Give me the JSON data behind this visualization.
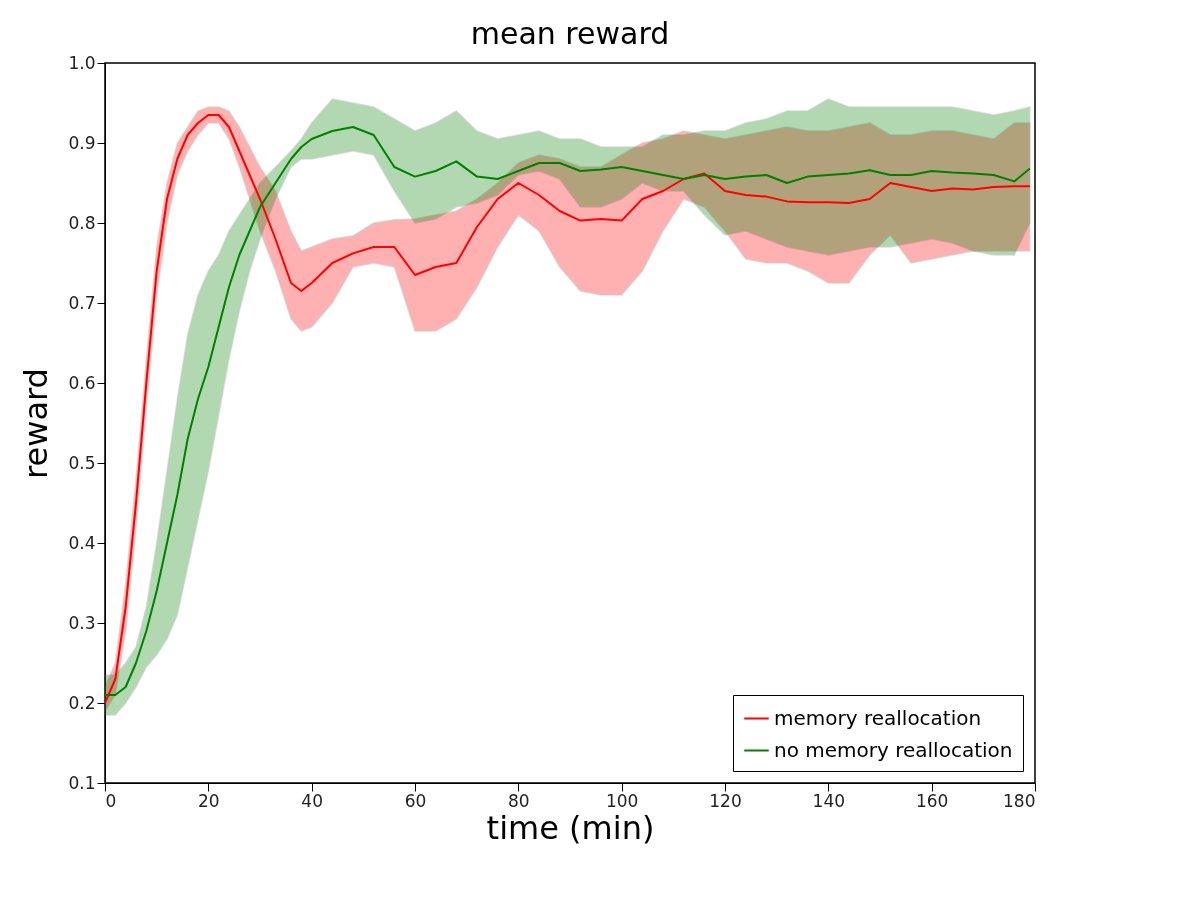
{
  "chart_data": {
    "type": "line",
    "title": "mean reward",
    "xlabel": "time (min)",
    "ylabel": "reward",
    "x": [
      0,
      2,
      4,
      6,
      8,
      10,
      12,
      14,
      16,
      18,
      20,
      22,
      24,
      26,
      28,
      30,
      33,
      36,
      38,
      40,
      44,
      48,
      52,
      56,
      60,
      64,
      68,
      72,
      76,
      80,
      84,
      88,
      92,
      96,
      100,
      104,
      108,
      112,
      116,
      120,
      124,
      128,
      132,
      136,
      140,
      144,
      148,
      152,
      156,
      160,
      164,
      168,
      172,
      176,
      179
    ],
    "series": [
      {
        "name": "memory reallocation",
        "color": "#ff0000",
        "values": [
          0.2,
          0.23,
          0.32,
          0.45,
          0.6,
          0.74,
          0.83,
          0.88,
          0.91,
          0.925,
          0.935,
          0.935,
          0.92,
          0.89,
          0.86,
          0.83,
          0.78,
          0.725,
          0.715,
          0.725,
          0.75,
          0.762,
          0.77,
          0.77,
          0.735,
          0.745,
          0.75,
          0.795,
          0.83,
          0.85,
          0.835,
          0.815,
          0.803,
          0.805,
          0.803,
          0.83,
          0.84,
          0.855,
          0.862,
          0.84,
          0.835,
          0.833,
          0.827,
          0.826,
          0.826,
          0.825,
          0.83,
          0.85,
          0.845,
          0.84,
          0.843,
          0.842,
          0.845,
          0.846,
          0.846
        ],
        "lower": [
          0.19,
          0.21,
          0.29,
          0.42,
          0.57,
          0.71,
          0.8,
          0.86,
          0.89,
          0.91,
          0.925,
          0.925,
          0.905,
          0.87,
          0.83,
          0.79,
          0.74,
          0.68,
          0.665,
          0.67,
          0.7,
          0.745,
          0.75,
          0.745,
          0.665,
          0.665,
          0.68,
          0.72,
          0.77,
          0.81,
          0.79,
          0.745,
          0.715,
          0.71,
          0.71,
          0.74,
          0.79,
          0.83,
          0.82,
          0.79,
          0.755,
          0.75,
          0.75,
          0.74,
          0.725,
          0.725,
          0.76,
          0.785,
          0.75,
          0.755,
          0.76,
          0.765,
          0.765,
          0.765,
          0.765
        ],
        "upper": [
          0.22,
          0.25,
          0.35,
          0.48,
          0.63,
          0.77,
          0.85,
          0.9,
          0.92,
          0.94,
          0.945,
          0.945,
          0.94,
          0.92,
          0.895,
          0.87,
          0.84,
          0.79,
          0.765,
          0.77,
          0.78,
          0.784,
          0.8,
          0.804,
          0.805,
          0.81,
          0.815,
          0.83,
          0.85,
          0.875,
          0.885,
          0.88,
          0.87,
          0.87,
          0.885,
          0.9,
          0.905,
          0.915,
          0.91,
          0.905,
          0.91,
          0.915,
          0.92,
          0.915,
          0.915,
          0.92,
          0.925,
          0.91,
          0.91,
          0.915,
          0.915,
          0.91,
          0.905,
          0.925,
          0.925
        ]
      },
      {
        "name": "no memory reallocation",
        "color": "#008000",
        "values": [
          0.21,
          0.21,
          0.22,
          0.25,
          0.29,
          0.34,
          0.4,
          0.46,
          0.53,
          0.58,
          0.62,
          0.67,
          0.72,
          0.76,
          0.79,
          0.82,
          0.85,
          0.88,
          0.895,
          0.905,
          0.915,
          0.92,
          0.91,
          0.87,
          0.858,
          0.865,
          0.877,
          0.858,
          0.855,
          0.865,
          0.875,
          0.875,
          0.865,
          0.867,
          0.87,
          0.865,
          0.86,
          0.855,
          0.86,
          0.855,
          0.858,
          0.86,
          0.85,
          0.858,
          0.86,
          0.862,
          0.866,
          0.86,
          0.86,
          0.865,
          0.863,
          0.862,
          0.86,
          0.852,
          0.868
        ],
        "lower": [
          0.185,
          0.185,
          0.2,
          0.22,
          0.245,
          0.26,
          0.28,
          0.31,
          0.37,
          0.43,
          0.49,
          0.56,
          0.63,
          0.69,
          0.74,
          0.78,
          0.83,
          0.87,
          0.88,
          0.88,
          0.885,
          0.89,
          0.885,
          0.84,
          0.8,
          0.805,
          0.82,
          0.825,
          0.835,
          0.86,
          0.865,
          0.855,
          0.82,
          0.82,
          0.83,
          0.85,
          0.84,
          0.84,
          0.81,
          0.785,
          0.79,
          0.78,
          0.77,
          0.765,
          0.76,
          0.765,
          0.77,
          0.77,
          0.775,
          0.78,
          0.775,
          0.765,
          0.76,
          0.76,
          0.8
        ],
        "upper": [
          0.235,
          0.235,
          0.25,
          0.27,
          0.32,
          0.4,
          0.49,
          0.58,
          0.66,
          0.71,
          0.74,
          0.76,
          0.79,
          0.81,
          0.83,
          0.85,
          0.87,
          0.89,
          0.905,
          0.925,
          0.955,
          0.95,
          0.945,
          0.93,
          0.915,
          0.925,
          0.94,
          0.915,
          0.905,
          0.91,
          0.915,
          0.905,
          0.905,
          0.895,
          0.895,
          0.895,
          0.91,
          0.91,
          0.915,
          0.915,
          0.925,
          0.93,
          0.94,
          0.94,
          0.955,
          0.945,
          0.945,
          0.945,
          0.945,
          0.945,
          0.945,
          0.94,
          0.935,
          0.94,
          0.945
        ]
      }
    ],
    "xlim": [
      0,
      180
    ],
    "xticks": [
      0,
      20,
      40,
      60,
      80,
      100,
      120,
      140,
      160,
      180
    ],
    "ylim": [
      0.1,
      1.0
    ],
    "yticks": [
      0.1,
      0.2,
      0.3,
      0.4,
      0.5,
      0.6,
      0.7,
      0.8,
      0.9,
      {
        "value": 1.0,
        "label": "1.0"
      }
    ],
    "grid": false,
    "legend": "bottom right",
    "line_style": "solid"
  }
}
